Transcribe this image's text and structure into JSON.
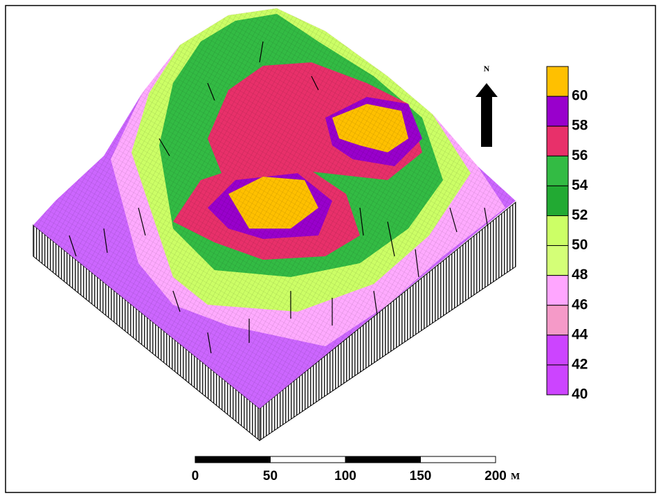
{
  "north_label": "N",
  "legend": {
    "labels": [
      60,
      58,
      56,
      54,
      52,
      50,
      48,
      46,
      44,
      42,
      40
    ],
    "colors": [
      "#ffc000",
      "#9900cc",
      "#e8306a",
      "#33bb44",
      "#22aa33",
      "#ccff66",
      "#d4ff77",
      "#ffa6ff",
      "#f59ac8",
      "#cc44ff",
      "#cc44ff"
    ]
  },
  "scale_bar": {
    "labels": [
      0,
      50,
      100,
      150,
      200
    ],
    "unit": "M"
  }
}
